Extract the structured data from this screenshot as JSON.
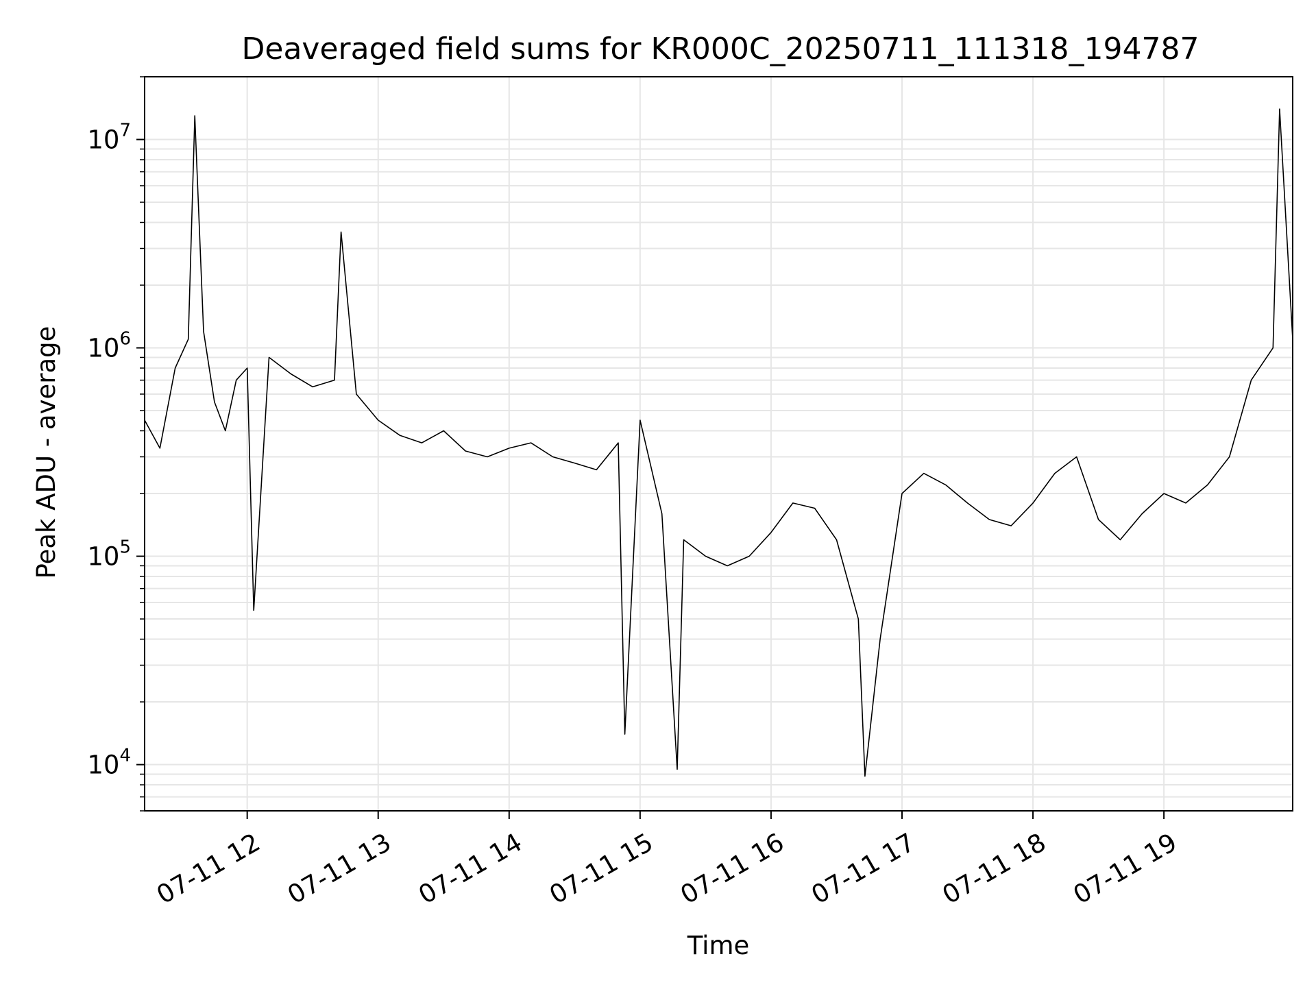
{
  "chart_data": {
    "type": "line",
    "title": "Deaveraged field sums for KR000C_20250711_111318_194787",
    "xlabel": "Time",
    "ylabel": "Peak ADU - average",
    "yscale": "log",
    "ylim": [
      6000,
      20000000
    ],
    "xlim": [
      "2025-07-11 11:13",
      "2025-07-11 19:59"
    ],
    "grid": true,
    "line_color": "#000000",
    "grid_color": "#e6e6e6",
    "x_ticks": [
      {
        "label": "07-11 12",
        "time": "2025-07-11 12:00"
      },
      {
        "label": "07-11 13",
        "time": "2025-07-11 13:00"
      },
      {
        "label": "07-11 14",
        "time": "2025-07-11 14:00"
      },
      {
        "label": "07-11 15",
        "time": "2025-07-11 15:00"
      },
      {
        "label": "07-11 16",
        "time": "2025-07-11 16:00"
      },
      {
        "label": "07-11 17",
        "time": "2025-07-11 17:00"
      },
      {
        "label": "07-11 18",
        "time": "2025-07-11 18:00"
      },
      {
        "label": "07-11 19",
        "time": "2025-07-11 19:00"
      }
    ],
    "y_ticks": [
      {
        "value": 10000,
        "base": "10",
        "exp": "4"
      },
      {
        "value": 100000,
        "base": "10",
        "exp": "5"
      },
      {
        "value": 1000000,
        "base": "10",
        "exp": "6"
      },
      {
        "value": 10000000,
        "base": "10",
        "exp": "7"
      }
    ],
    "series": [
      {
        "points": [
          [
            "2025-07-11 11:13",
            450000
          ],
          [
            "2025-07-11 11:20",
            330000
          ],
          [
            "2025-07-11 11:27",
            800000
          ],
          [
            "2025-07-11 11:33",
            1100000
          ],
          [
            "2025-07-11 11:36",
            13000000
          ],
          [
            "2025-07-11 11:40",
            1200000
          ],
          [
            "2025-07-11 11:45",
            550000
          ],
          [
            "2025-07-11 11:50",
            400000
          ],
          [
            "2025-07-11 11:55",
            700000
          ],
          [
            "2025-07-11 12:00",
            800000
          ],
          [
            "2025-07-11 12:03",
            55000
          ],
          [
            "2025-07-11 12:10",
            900000
          ],
          [
            "2025-07-11 12:20",
            750000
          ],
          [
            "2025-07-11 12:30",
            650000
          ],
          [
            "2025-07-11 12:40",
            700000
          ],
          [
            "2025-07-11 12:43",
            3600000
          ],
          [
            "2025-07-11 12:50",
            600000
          ],
          [
            "2025-07-11 13:00",
            450000
          ],
          [
            "2025-07-11 13:10",
            380000
          ],
          [
            "2025-07-11 13:20",
            350000
          ],
          [
            "2025-07-11 13:30",
            400000
          ],
          [
            "2025-07-11 13:40",
            320000
          ],
          [
            "2025-07-11 13:50",
            300000
          ],
          [
            "2025-07-11 14:00",
            330000
          ],
          [
            "2025-07-11 14:10",
            350000
          ],
          [
            "2025-07-11 14:20",
            300000
          ],
          [
            "2025-07-11 14:30",
            280000
          ],
          [
            "2025-07-11 14:40",
            260000
          ],
          [
            "2025-07-11 14:50",
            350000
          ],
          [
            "2025-07-11 14:53",
            14000
          ],
          [
            "2025-07-11 15:00",
            450000
          ],
          [
            "2025-07-11 15:10",
            160000
          ],
          [
            "2025-07-11 15:17",
            9500
          ],
          [
            "2025-07-11 15:20",
            120000
          ],
          [
            "2025-07-11 15:30",
            100000
          ],
          [
            "2025-07-11 15:40",
            90000
          ],
          [
            "2025-07-11 15:50",
            100000
          ],
          [
            "2025-07-11 16:00",
            130000
          ],
          [
            "2025-07-11 16:10",
            180000
          ],
          [
            "2025-07-11 16:20",
            170000
          ],
          [
            "2025-07-11 16:30",
            120000
          ],
          [
            "2025-07-11 16:40",
            50000
          ],
          [
            "2025-07-11 16:43",
            8800
          ],
          [
            "2025-07-11 16:50",
            40000
          ],
          [
            "2025-07-11 17:00",
            200000
          ],
          [
            "2025-07-11 17:10",
            250000
          ],
          [
            "2025-07-11 17:20",
            220000
          ],
          [
            "2025-07-11 17:30",
            180000
          ],
          [
            "2025-07-11 17:40",
            150000
          ],
          [
            "2025-07-11 17:50",
            140000
          ],
          [
            "2025-07-11 18:00",
            180000
          ],
          [
            "2025-07-11 18:10",
            250000
          ],
          [
            "2025-07-11 18:20",
            300000
          ],
          [
            "2025-07-11 18:30",
            150000
          ],
          [
            "2025-07-11 18:40",
            120000
          ],
          [
            "2025-07-11 18:50",
            160000
          ],
          [
            "2025-07-11 19:00",
            200000
          ],
          [
            "2025-07-11 19:10",
            180000
          ],
          [
            "2025-07-11 19:20",
            220000
          ],
          [
            "2025-07-11 19:30",
            300000
          ],
          [
            "2025-07-11 19:40",
            700000
          ],
          [
            "2025-07-11 19:50",
            1000000
          ],
          [
            "2025-07-11 19:53",
            14000000
          ],
          [
            "2025-07-11 19:59",
            1100000
          ]
        ]
      }
    ]
  }
}
